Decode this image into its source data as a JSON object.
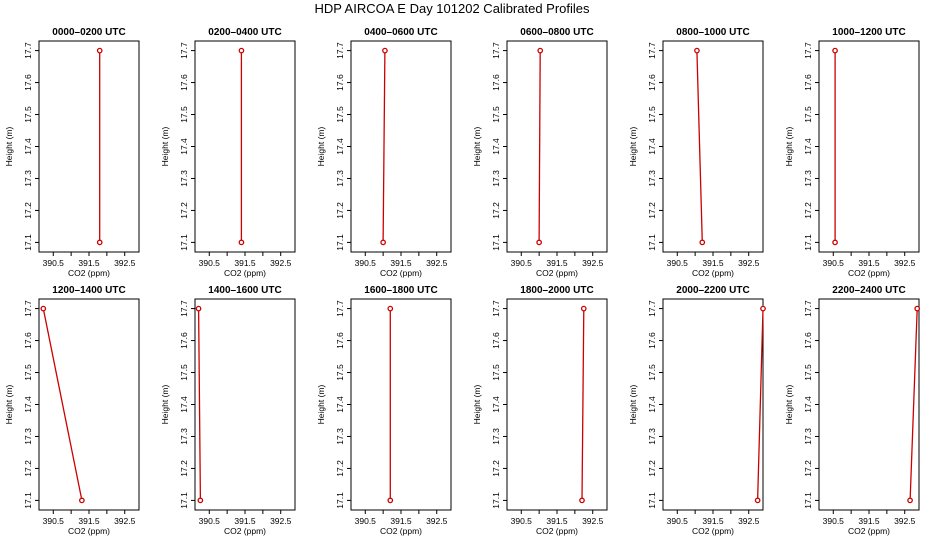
{
  "title": "HDP AIRCOA E  Day 101202  Calibrated Profiles",
  "chart_data": [
    {
      "type": "line",
      "title": "0000–0200 UTC",
      "xlabel": "CO2 (ppm)",
      "ylabel": "Height (m)",
      "xlim": [
        390.1,
        392.9
      ],
      "ylim": [
        17.07,
        17.73
      ],
      "xticks": [
        "390.5",
        "391.5",
        "392.5"
      ],
      "yticks": [
        "17.1",
        "17.2",
        "17.3",
        "17.4",
        "17.5",
        "17.6",
        "17.7"
      ],
      "points": [
        [
          391.8,
          17.1
        ],
        [
          391.8,
          17.7
        ]
      ]
    },
    {
      "type": "line",
      "title": "0200–0400 UTC",
      "xlabel": "CO2 (ppm)",
      "ylabel": "Height (m)",
      "xlim": [
        390.1,
        392.9
      ],
      "ylim": [
        17.07,
        17.73
      ],
      "xticks": [
        "390.5",
        "391.5",
        "392.5"
      ],
      "yticks": [
        "17.1",
        "17.2",
        "17.3",
        "17.4",
        "17.5",
        "17.6",
        "17.7"
      ],
      "points": [
        [
          391.4,
          17.1
        ],
        [
          391.4,
          17.7
        ]
      ]
    },
    {
      "type": "line",
      "title": "0400–0600 UTC",
      "xlabel": "CO2 (ppm)",
      "ylabel": "Height (m)",
      "xlim": [
        390.1,
        392.9
      ],
      "ylim": [
        17.07,
        17.73
      ],
      "xticks": [
        "390.5",
        "391.5",
        "392.5"
      ],
      "yticks": [
        "17.1",
        "17.2",
        "17.3",
        "17.4",
        "17.5",
        "17.6",
        "17.7"
      ],
      "points": [
        [
          391.0,
          17.1
        ],
        [
          391.05,
          17.7
        ]
      ]
    },
    {
      "type": "line",
      "title": "0600–0800 UTC",
      "xlabel": "CO2 (ppm)",
      "ylabel": "Height (m)",
      "xlim": [
        390.1,
        392.9
      ],
      "ylim": [
        17.07,
        17.73
      ],
      "xticks": [
        "390.5",
        "391.5",
        "392.5"
      ],
      "yticks": [
        "17.1",
        "17.2",
        "17.3",
        "17.4",
        "17.5",
        "17.6",
        "17.7"
      ],
      "points": [
        [
          391.0,
          17.1
        ],
        [
          391.03,
          17.7
        ]
      ]
    },
    {
      "type": "line",
      "title": "0800–1000 UTC",
      "xlabel": "CO2 (ppm)",
      "ylabel": "Height (m)",
      "xlim": [
        390.1,
        392.9
      ],
      "ylim": [
        17.07,
        17.73
      ],
      "xticks": [
        "390.5",
        "391.5",
        "392.5"
      ],
      "yticks": [
        "17.1",
        "17.2",
        "17.3",
        "17.4",
        "17.5",
        "17.6",
        "17.7"
      ],
      "points": [
        [
          391.2,
          17.1
        ],
        [
          391.05,
          17.7
        ]
      ]
    },
    {
      "type": "line",
      "title": "1000–1200 UTC",
      "xlabel": "CO2 (ppm)",
      "ylabel": "Height (m)",
      "xlim": [
        390.1,
        392.9
      ],
      "ylim": [
        17.07,
        17.73
      ],
      "xticks": [
        "390.5",
        "391.5",
        "392.5"
      ],
      "yticks": [
        "17.1",
        "17.2",
        "17.3",
        "17.4",
        "17.5",
        "17.6",
        "17.7"
      ],
      "points": [
        [
          390.55,
          17.1
        ],
        [
          390.55,
          17.7
        ]
      ]
    },
    {
      "type": "line",
      "title": "1200–1400 UTC",
      "xlabel": "CO2 (ppm)",
      "ylabel": "Height (m)",
      "xlim": [
        390.1,
        392.9
      ],
      "ylim": [
        17.07,
        17.73
      ],
      "xticks": [
        "390.5",
        "391.5",
        "392.5"
      ],
      "yticks": [
        "17.1",
        "17.2",
        "17.3",
        "17.4",
        "17.5",
        "17.6",
        "17.7"
      ],
      "points": [
        [
          391.3,
          17.1
        ],
        [
          390.22,
          17.7
        ]
      ]
    },
    {
      "type": "line",
      "title": "1400–1600 UTC",
      "xlabel": "CO2 (ppm)",
      "ylabel": "Height (m)",
      "xlim": [
        390.1,
        392.9
      ],
      "ylim": [
        17.07,
        17.73
      ],
      "xticks": [
        "390.5",
        "391.5",
        "392.5"
      ],
      "yticks": [
        "17.1",
        "17.2",
        "17.3",
        "17.4",
        "17.5",
        "17.6",
        "17.7"
      ],
      "points": [
        [
          390.25,
          17.1
        ],
        [
          390.2,
          17.7
        ]
      ]
    },
    {
      "type": "line",
      "title": "1600–1800 UTC",
      "xlabel": "CO2 (ppm)",
      "ylabel": "Height (m)",
      "xlim": [
        390.1,
        392.9
      ],
      "ylim": [
        17.07,
        17.73
      ],
      "xticks": [
        "390.5",
        "391.5",
        "392.5"
      ],
      "yticks": [
        "17.1",
        "17.2",
        "17.3",
        "17.4",
        "17.5",
        "17.6",
        "17.7"
      ],
      "points": [
        [
          391.2,
          17.1
        ],
        [
          391.2,
          17.7
        ]
      ]
    },
    {
      "type": "line",
      "title": "1800–2000 UTC",
      "xlabel": "CO2 (ppm)",
      "ylabel": "Height (m)",
      "xlim": [
        390.1,
        392.9
      ],
      "ylim": [
        17.07,
        17.73
      ],
      "xticks": [
        "390.5",
        "391.5",
        "392.5"
      ],
      "yticks": [
        "17.1",
        "17.2",
        "17.3",
        "17.4",
        "17.5",
        "17.6",
        "17.7"
      ],
      "points": [
        [
          392.2,
          17.1
        ],
        [
          392.25,
          17.7
        ]
      ]
    },
    {
      "type": "line",
      "title": "2000–2200 UTC",
      "xlabel": "CO2 (ppm)",
      "ylabel": "Height (m)",
      "xlim": [
        390.1,
        392.9
      ],
      "ylim": [
        17.07,
        17.73
      ],
      "xticks": [
        "390.5",
        "391.5",
        "392.5"
      ],
      "yticks": [
        "17.1",
        "17.2",
        "17.3",
        "17.4",
        "17.5",
        "17.6",
        "17.7"
      ],
      "points": [
        [
          392.75,
          17.1
        ],
        [
          392.9,
          17.7
        ]
      ]
    },
    {
      "type": "line",
      "title": "2200–2400 UTC",
      "xlabel": "CO2 (ppm)",
      "ylabel": "Height (m)",
      "xlim": [
        390.1,
        392.9
      ],
      "ylim": [
        17.07,
        17.73
      ],
      "xticks": [
        "390.5",
        "391.5",
        "392.5"
      ],
      "yticks": [
        "17.1",
        "17.2",
        "17.3",
        "17.4",
        "17.5",
        "17.6",
        "17.7"
      ],
      "points": [
        [
          392.65,
          17.1
        ],
        [
          392.85,
          17.7
        ]
      ]
    }
  ],
  "colors": {
    "series": "#cc0000",
    "axis": "#000000",
    "background": "#ffffff"
  }
}
